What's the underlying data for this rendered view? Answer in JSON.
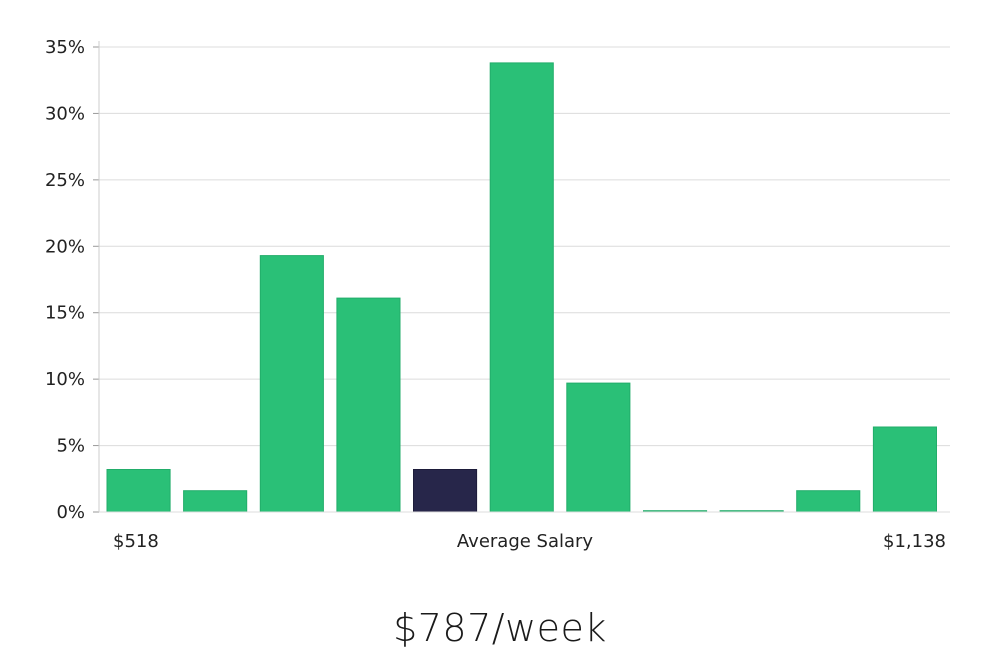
{
  "headline": "$787/week",
  "colors": {
    "bar": "#2ac077",
    "highlight_bar": "#27264a",
    "grid": "#dcdcdc",
    "axis": "#cccccc"
  },
  "chart_data": {
    "type": "bar",
    "title": "",
    "ylabel": "",
    "xlabel": "",
    "ylim": [
      0,
      35
    ],
    "y_ticks": [
      0,
      5,
      10,
      15,
      20,
      25,
      30,
      35
    ],
    "y_tick_labels": [
      "0%",
      "5%",
      "10%",
      "15%",
      "20%",
      "25%",
      "30%",
      "35%"
    ],
    "grid": true,
    "values": [
      3.2,
      1.6,
      19.3,
      16.1,
      3.2,
      33.8,
      9.7,
      0.1,
      0.1,
      1.6,
      6.4
    ],
    "highlight_index": 4,
    "x_labels": {
      "left": "$518",
      "center": "Average Salary",
      "right": "$1,138"
    }
  }
}
